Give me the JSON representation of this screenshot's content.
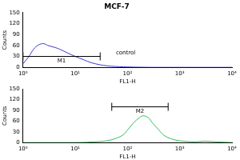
{
  "chart_data": [
    {
      "type": "line",
      "title": "MCF-7",
      "x_label": "FL1-H",
      "y_label": "Counts",
      "log": "x",
      "grid": false,
      "xlim": [
        1,
        10000
      ],
      "xticks": [
        {
          "value": 1,
          "label": "10⁰"
        },
        {
          "value": 10,
          "label": "10¹"
        },
        {
          "value": 100,
          "label": "10²"
        },
        {
          "value": 1000,
          "label": "10³"
        },
        {
          "value": 10000,
          "label": "10⁴"
        }
      ],
      "ylim": [
        0,
        150
      ],
      "yticks": [
        0,
        30,
        60,
        90,
        120,
        150
      ],
      "series": [
        {
          "color": "#3a3acc",
          "x": [
            1,
            1.3,
            1.6,
            2,
            2.5,
            3,
            4,
            5,
            7,
            10,
            15,
            20,
            30,
            50,
            100,
            300,
            1000,
            10000
          ],
          "values": [
            10,
            30,
            50,
            62,
            65,
            60,
            55,
            50,
            40,
            30,
            20,
            13,
            7,
            3,
            1,
            0,
            0,
            0
          ]
        }
      ],
      "gates": [
        {
          "label": "M1",
          "range": [
            1,
            30
          ],
          "y": 30
        }
      ],
      "annotations": [
        {
          "text": "control",
          "x": 60,
          "y": 40
        }
      ]
    },
    {
      "type": "line",
      "x_label": "FL1-H",
      "y_label": "Counts",
      "log": "x",
      "grid": false,
      "xlim": [
        1,
        10000
      ],
      "xticks": [
        {
          "value": 1,
          "label": "10⁰"
        },
        {
          "value": 10,
          "label": "10¹"
        },
        {
          "value": 100,
          "label": "10²"
        },
        {
          "value": 1000,
          "label": "10³"
        },
        {
          "value": 10000,
          "label": "10⁴"
        }
      ],
      "ylim": [
        0,
        150
      ],
      "yticks": [
        0,
        30,
        60,
        90,
        120,
        150
      ],
      "series": [
        {
          "color": "#2fbf5a",
          "x": [
            1,
            10,
            30,
            50,
            80,
            100,
            130,
            170,
            200,
            250,
            300,
            400,
            500,
            700,
            1000,
            2000,
            3000,
            5000,
            10000
          ],
          "values": [
            0,
            0,
            3,
            8,
            20,
            35,
            55,
            70,
            75,
            70,
            55,
            35,
            20,
            10,
            5,
            2,
            4,
            2,
            0
          ]
        }
      ],
      "gates": [
        {
          "label": "M2",
          "range": [
            50,
            600
          ],
          "y": 100
        }
      ]
    }
  ]
}
